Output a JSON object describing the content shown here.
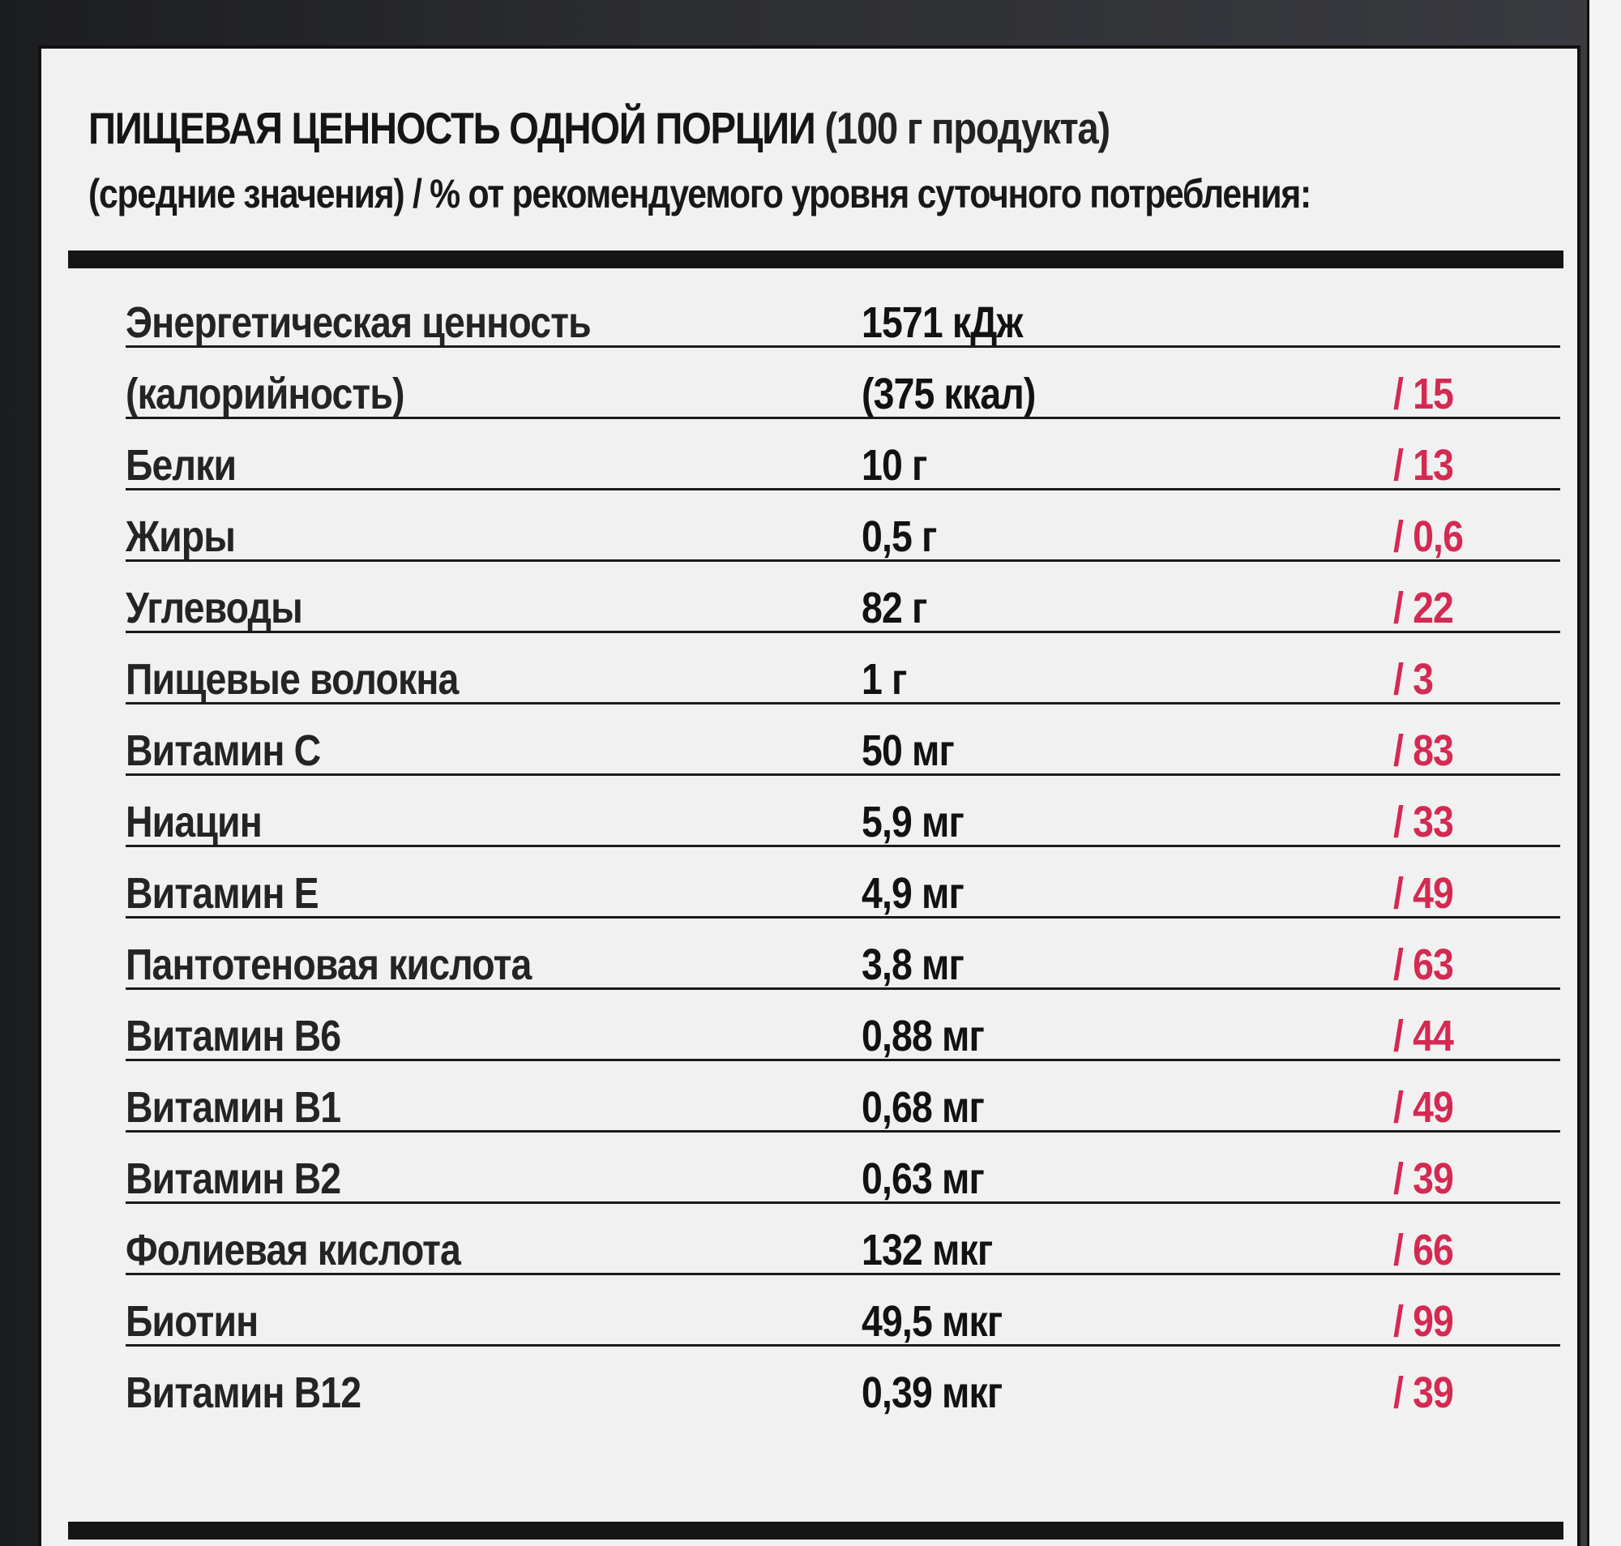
{
  "header": {
    "title_bold": "ПИЩЕВАЯ ЦЕННОСТЬ ОДНОЙ ПОРЦИИ",
    "title_portion": "(100 г продукта)",
    "subtitle": "(средние значения) / % от рекомендуемого уровня  суточного потребления:"
  },
  "rows": [
    {
      "name": "Энергетическая ценность",
      "amount": "1571 кДж",
      "pct": ""
    },
    {
      "name": "(калорийность)",
      "amount": "(375 ккал)",
      "pct": "/ 15"
    },
    {
      "name": "Белки",
      "amount": "10 г",
      "pct": "/ 13"
    },
    {
      "name": "Жиры",
      "amount": " 0,5 г",
      "pct": "/ 0,6"
    },
    {
      "name": "Углеводы",
      "amount": "82 г",
      "pct": "/ 22"
    },
    {
      "name": "Пищевые волокна",
      "amount": "1 г",
      "pct": "/ 3"
    },
    {
      "name": "Витамин С",
      "amount": "50 мг",
      "pct": "/ 83"
    },
    {
      "name": "Ниацин",
      "amount": "5,9 мг",
      "pct": "/ 33"
    },
    {
      "name": "Витамин Е",
      "amount": "4,9 мг",
      "pct": "/ 49"
    },
    {
      "name": "Пантотеновая кислота",
      "amount": "3,8 мг",
      "pct": "/ 63"
    },
    {
      "name": "Витамин В6",
      "amount": "0,88 мг",
      "pct": "/ 44"
    },
    {
      "name": "Витамин В1",
      "amount": "0,68 мг",
      "pct": "/ 49"
    },
    {
      "name": "Витамин В2",
      "amount": "0,63 мг",
      "pct": "/ 39"
    },
    {
      "name": "Фолиевая кислота",
      "amount": "132 мкг",
      "pct": "/ 66"
    },
    {
      "name": "Биотин",
      "amount": "49,5 мкг",
      "pct": "/ 99"
    },
    {
      "name": "Витамин В12",
      "amount": "0,39 мкг",
      "pct": "/ 39"
    }
  ],
  "colors": {
    "percent_text": "#d42a52",
    "label_background": "#f1f1f1",
    "rule": "#151515"
  }
}
